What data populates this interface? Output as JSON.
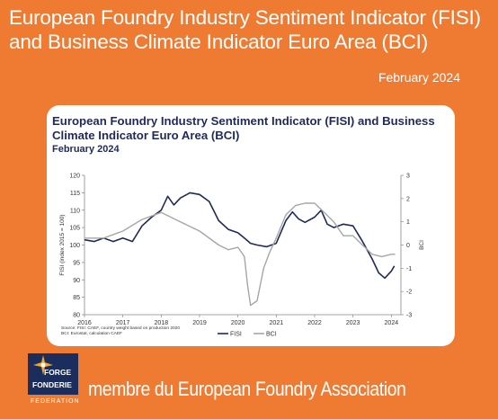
{
  "header": {
    "title": "European Foundry Industry Sentiment Indicator (FISI) and Business Climate Indicator Euro Area (BCI)",
    "date": "February 2024"
  },
  "footer": {
    "text": "membre du European Foundry Association",
    "logo_line1": "FORGE",
    "logo_line2": "FONDERIE",
    "logo_line3": "FEDERATION"
  },
  "card": {
    "source_line1": "Source: FISI: CAEF, country weight based on production 2020",
    "source_line2": "BCI: Eurostat, calculation CAEF"
  },
  "colors": {
    "fisi": "#1f2a5a",
    "bci": "#a6a6a6",
    "background": "#ef7b33"
  },
  "chart_data": {
    "type": "line",
    "title": "European Foundry Industry Sentiment Indicator (FISI) and Business Climate Indicator Euro Area (BCI)",
    "subtitle": "February 2024",
    "ylabel": "FISI (index 2015 = 100)",
    "y2label": "BCI",
    "xlim": [
      2016,
      2024.25
    ],
    "ylim": [
      80,
      120
    ],
    "y2lim": [
      -3,
      3
    ],
    "yticks": [
      80,
      85,
      90,
      95,
      100,
      105,
      110,
      115,
      120
    ],
    "y2ticks": [
      -3,
      -2,
      -1,
      0,
      1,
      2,
      3
    ],
    "xticks": [
      2016,
      2017,
      2018,
      2019,
      2020,
      2021,
      2022,
      2023,
      2024
    ],
    "xtick_labels": [
      "2016",
      "2017",
      "2018",
      "2019",
      "2020",
      "2021",
      "2022",
      "2023",
      "2024"
    ],
    "legend_position": "bottom-center",
    "grid": false,
    "series": [
      {
        "name": "FISI",
        "axis": "left",
        "points": [
          [
            2016.0,
            101.5
          ],
          [
            2016.25,
            101.0
          ],
          [
            2016.5,
            102.0
          ],
          [
            2016.75,
            101.0
          ],
          [
            2017.0,
            102.0
          ],
          [
            2017.25,
            101.0
          ],
          [
            2017.5,
            105.5
          ],
          [
            2017.75,
            108.0
          ],
          [
            2018.0,
            110.0
          ],
          [
            2018.17,
            114.0
          ],
          [
            2018.33,
            111.5
          ],
          [
            2018.5,
            113.5
          ],
          [
            2018.75,
            115.0
          ],
          [
            2019.0,
            114.5
          ],
          [
            2019.25,
            112.5
          ],
          [
            2019.5,
            107.0
          ],
          [
            2019.75,
            104.5
          ],
          [
            2020.0,
            103.5
          ],
          [
            2020.17,
            102.0
          ],
          [
            2020.33,
            100.5
          ],
          [
            2020.5,
            100.0
          ],
          [
            2020.75,
            99.5
          ],
          [
            2021.0,
            100.5
          ],
          [
            2021.25,
            107.0
          ],
          [
            2021.42,
            109.5
          ],
          [
            2021.58,
            107.5
          ],
          [
            2021.75,
            106.5
          ],
          [
            2022.0,
            108.0
          ],
          [
            2022.17,
            110.0
          ],
          [
            2022.33,
            106.0
          ],
          [
            2022.5,
            105.0
          ],
          [
            2022.75,
            106.0
          ],
          [
            2023.0,
            105.5
          ],
          [
            2023.25,
            101.0
          ],
          [
            2023.5,
            96.0
          ],
          [
            2023.67,
            92.0
          ],
          [
            2023.83,
            90.5
          ],
          [
            2024.0,
            92.5
          ],
          [
            2024.08,
            94.0
          ]
        ]
      },
      {
        "name": "BCI",
        "axis": "right",
        "points": [
          [
            2016.0,
            0.3
          ],
          [
            2016.5,
            0.3
          ],
          [
            2017.0,
            0.6
          ],
          [
            2017.5,
            1.1
          ],
          [
            2018.0,
            1.4
          ],
          [
            2018.25,
            1.2
          ],
          [
            2018.5,
            1.0
          ],
          [
            2019.0,
            0.6
          ],
          [
            2019.5,
            0.0
          ],
          [
            2019.75,
            -0.2
          ],
          [
            2020.0,
            -0.1
          ],
          [
            2020.17,
            -0.5
          ],
          [
            2020.25,
            -1.7
          ],
          [
            2020.33,
            -2.6
          ],
          [
            2020.5,
            -2.4
          ],
          [
            2020.67,
            -1.0
          ],
          [
            2020.83,
            -0.3
          ],
          [
            2021.0,
            0.3
          ],
          [
            2021.25,
            1.3
          ],
          [
            2021.5,
            1.7
          ],
          [
            2021.75,
            1.8
          ],
          [
            2022.0,
            1.8
          ],
          [
            2022.25,
            1.4
          ],
          [
            2022.5,
            1.0
          ],
          [
            2022.75,
            0.4
          ],
          [
            2023.0,
            0.4
          ],
          [
            2023.25,
            0.0
          ],
          [
            2023.5,
            -0.4
          ],
          [
            2023.75,
            -0.5
          ],
          [
            2024.0,
            -0.4
          ],
          [
            2024.1,
            -0.4
          ]
        ]
      }
    ]
  }
}
